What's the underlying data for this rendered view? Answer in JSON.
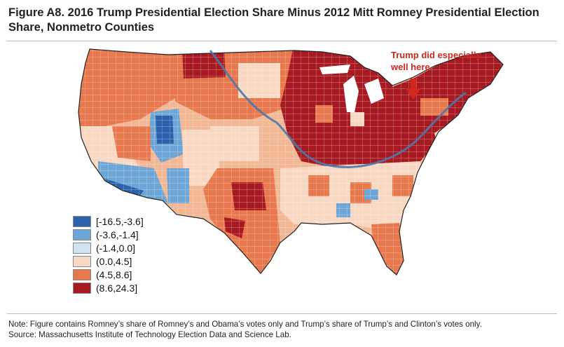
{
  "figure": {
    "title": "Figure A8. 2016 Trump Presidential Election Share Minus 2012 Mitt Romney Presidential Election Share, Nonmetro Counties",
    "annotation": "Trump did especially well here"
  },
  "legend": {
    "items": [
      {
        "label": "[-16.5,-3.6]",
        "color": "#2b62ad"
      },
      {
        "label": "(-3.6,-1.4]",
        "color": "#6da5d6"
      },
      {
        "label": "(-1.4,0.0]",
        "color": "#cfe3f1"
      },
      {
        "label": "(0.0,4.5]",
        "color": "#f8d8c3"
      },
      {
        "label": "(4.5,8.6]",
        "color": "#e8784e"
      },
      {
        "label": "(8.6,24.3]",
        "color": "#a81a22"
      }
    ]
  },
  "colors": {
    "divider_line": "#4d78a8",
    "annotation": "#d0281e"
  },
  "footer": {
    "note": "Note: Figure contains Romney’s share of Romney’s and Obama’s votes only and Trump’s share of Trump’s and Clinton’s votes only.",
    "source": "Source: Massachusetts Institute of Technology Election Data and Science Lab."
  }
}
